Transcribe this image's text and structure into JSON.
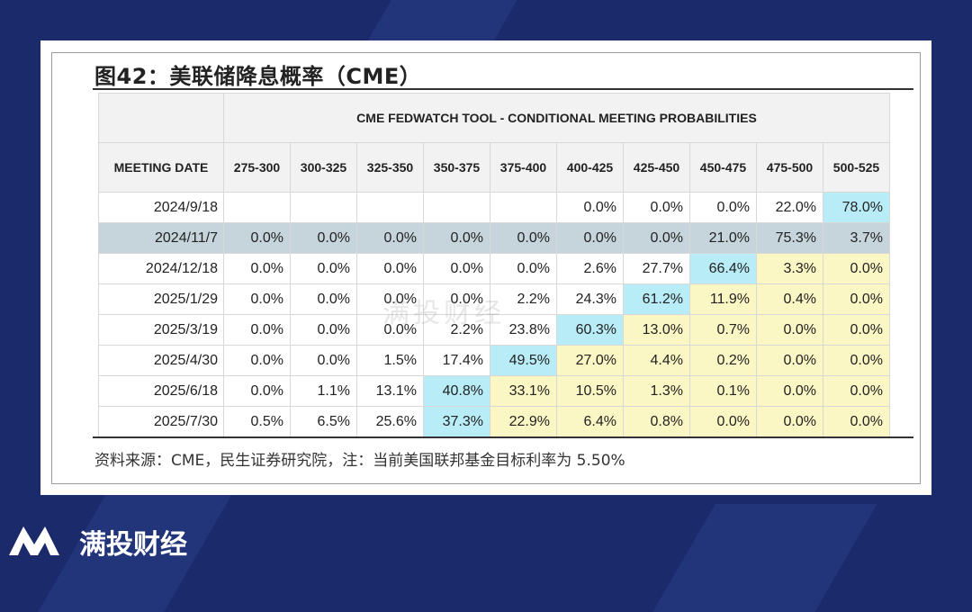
{
  "figure_title": "图42：美联储降息概率（CME）",
  "table_title": "CME FEDWATCH TOOL - CONDITIONAL MEETING PROBABILITIES",
  "columns": [
    "MEETING DATE",
    "275-300",
    "300-325",
    "325-350",
    "350-375",
    "375-400",
    "400-425",
    "425-450",
    "450-475",
    "475-500",
    "500-525"
  ],
  "rows": [
    {
      "date": "2024/9/18",
      "values": [
        "",
        "",
        "",
        "",
        "",
        "0.0%",
        "0.0%",
        "0.0%",
        "22.0%",
        "78.0%"
      ]
    },
    {
      "date": "2024/11/7",
      "values": [
        "0.0%",
        "0.0%",
        "0.0%",
        "0.0%",
        "0.0%",
        "0.0%",
        "0.0%",
        "21.0%",
        "75.3%",
        "3.7%"
      ]
    },
    {
      "date": "2024/12/18",
      "values": [
        "0.0%",
        "0.0%",
        "0.0%",
        "0.0%",
        "0.0%",
        "2.6%",
        "27.7%",
        "66.4%",
        "3.3%",
        "0.0%"
      ]
    },
    {
      "date": "2025/1/29",
      "values": [
        "0.0%",
        "0.0%",
        "0.0%",
        "0.0%",
        "2.2%",
        "24.3%",
        "61.2%",
        "11.9%",
        "0.4%",
        "0.0%"
      ]
    },
    {
      "date": "2025/3/19",
      "values": [
        "0.0%",
        "0.0%",
        "0.0%",
        "2.2%",
        "23.8%",
        "60.3%",
        "13.0%",
        "0.7%",
        "0.0%",
        "0.0%"
      ]
    },
    {
      "date": "2025/4/30",
      "values": [
        "0.0%",
        "0.0%",
        "1.5%",
        "17.4%",
        "49.5%",
        "27.0%",
        "4.4%",
        "0.2%",
        "0.0%",
        "0.0%"
      ]
    },
    {
      "date": "2025/6/18",
      "values": [
        "0.0%",
        "1.1%",
        "13.1%",
        "40.8%",
        "33.1%",
        "10.5%",
        "1.3%",
        "0.1%",
        "0.0%",
        "0.0%"
      ]
    },
    {
      "date": "2025/7/30",
      "values": [
        "0.5%",
        "6.5%",
        "25.6%",
        "37.3%",
        "22.9%",
        "6.4%",
        "0.8%",
        "0.0%",
        "0.0%",
        "0.0%"
      ]
    }
  ],
  "source_note": "资料来源：CME，民生证券研究院，注：当前美国联邦基金目标利率为 5.50%",
  "watermark": "满投财经",
  "brand": "满投财经",
  "colors": {
    "highlight": "#b8ecf7",
    "yellow": "#fbf7c4",
    "shaded_row": "#c6d5dc",
    "background": "#1b2a6b"
  }
}
